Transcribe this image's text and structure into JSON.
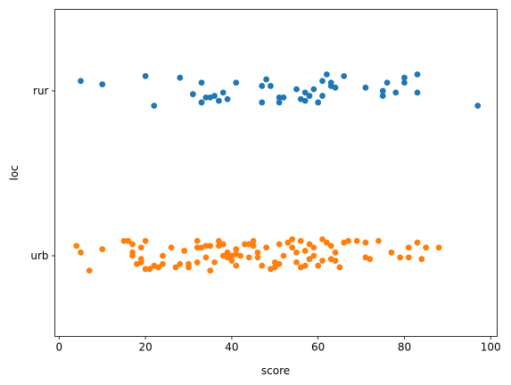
{
  "chart_data": {
    "type": "scatter",
    "subtype": "strip",
    "orientation": "horizontal",
    "xlabel": "score",
    "ylabel": "loc",
    "xlim": [
      -1,
      101.5
    ],
    "xticks": [
      0,
      20,
      40,
      60,
      80,
      100
    ],
    "categories": [
      "rur",
      "urb"
    ],
    "grid": false,
    "series": [
      {
        "name": "rur",
        "color": "#1f77b4",
        "points": [
          {
            "x": 5,
            "jitter": 0.06
          },
          {
            "x": 10,
            "jitter": 0.04
          },
          {
            "x": 20,
            "jitter": 0.09
          },
          {
            "x": 22,
            "jitter": -0.09
          },
          {
            "x": 28,
            "jitter": 0.08
          },
          {
            "x": 31,
            "jitter": -0.02
          },
          {
            "x": 33,
            "jitter": -0.07
          },
          {
            "x": 33,
            "jitter": 0.05
          },
          {
            "x": 34,
            "jitter": -0.04
          },
          {
            "x": 35,
            "jitter": -0.04
          },
          {
            "x": 36,
            "jitter": -0.03
          },
          {
            "x": 37,
            "jitter": -0.06
          },
          {
            "x": 38,
            "jitter": -0.01
          },
          {
            "x": 39,
            "jitter": -0.05
          },
          {
            "x": 41,
            "jitter": 0.05
          },
          {
            "x": 47,
            "jitter": 0.03
          },
          {
            "x": 47,
            "jitter": -0.07
          },
          {
            "x": 48,
            "jitter": 0.07
          },
          {
            "x": 49,
            "jitter": 0.03
          },
          {
            "x": 51,
            "jitter": -0.07
          },
          {
            "x": 51,
            "jitter": -0.04
          },
          {
            "x": 52,
            "jitter": -0.04
          },
          {
            "x": 55,
            "jitter": 0.01
          },
          {
            "x": 56,
            "jitter": -0.05
          },
          {
            "x": 57,
            "jitter": -0.06
          },
          {
            "x": 57,
            "jitter": -0.01
          },
          {
            "x": 58,
            "jitter": -0.03
          },
          {
            "x": 59,
            "jitter": 0.01
          },
          {
            "x": 60,
            "jitter": -0.07
          },
          {
            "x": 61,
            "jitter": -0.03
          },
          {
            "x": 61,
            "jitter": 0.06
          },
          {
            "x": 62,
            "jitter": 0.1
          },
          {
            "x": 63,
            "jitter": 0.03
          },
          {
            "x": 63,
            "jitter": 0.05
          },
          {
            "x": 64,
            "jitter": 0.02
          },
          {
            "x": 66,
            "jitter": 0.09
          },
          {
            "x": 71,
            "jitter": 0.02
          },
          {
            "x": 75,
            "jitter": -0.03
          },
          {
            "x": 75,
            "jitter": 0.0
          },
          {
            "x": 76,
            "jitter": 0.05
          },
          {
            "x": 78,
            "jitter": -0.01
          },
          {
            "x": 80,
            "jitter": 0.05
          },
          {
            "x": 80,
            "jitter": 0.08
          },
          {
            "x": 83,
            "jitter": 0.1
          },
          {
            "x": 83,
            "jitter": -0.01
          },
          {
            "x": 97,
            "jitter": -0.09
          }
        ]
      },
      {
        "name": "urb",
        "color": "#ff7f0e",
        "points": [
          {
            "x": 4,
            "jitter": 0.06
          },
          {
            "x": 5,
            "jitter": 0.02
          },
          {
            "x": 7,
            "jitter": -0.09
          },
          {
            "x": 10,
            "jitter": 0.04
          },
          {
            "x": 15,
            "jitter": 0.09
          },
          {
            "x": 16,
            "jitter": 0.09
          },
          {
            "x": 17,
            "jitter": 0.02
          },
          {
            "x": 17,
            "jitter": 0.0
          },
          {
            "x": 17,
            "jitter": 0.07
          },
          {
            "x": 18,
            "jitter": -0.05
          },
          {
            "x": 19,
            "jitter": -0.02
          },
          {
            "x": 19,
            "jitter": -0.04
          },
          {
            "x": 19,
            "jitter": 0.05
          },
          {
            "x": 20,
            "jitter": -0.08
          },
          {
            "x": 20,
            "jitter": 0.09
          },
          {
            "x": 21,
            "jitter": -0.08
          },
          {
            "x": 22,
            "jitter": -0.06
          },
          {
            "x": 23,
            "jitter": -0.07
          },
          {
            "x": 24,
            "jitter": -0.05
          },
          {
            "x": 24,
            "jitter": 0.0
          },
          {
            "x": 26,
            "jitter": 0.05
          },
          {
            "x": 27,
            "jitter": -0.07
          },
          {
            "x": 28,
            "jitter": -0.05
          },
          {
            "x": 29,
            "jitter": 0.03
          },
          {
            "x": 30,
            "jitter": -0.05
          },
          {
            "x": 30,
            "jitter": -0.07
          },
          {
            "x": 32,
            "jitter": 0.09
          },
          {
            "x": 32,
            "jitter": -0.04
          },
          {
            "x": 32,
            "jitter": 0.05
          },
          {
            "x": 33,
            "jitter": 0.05
          },
          {
            "x": 34,
            "jitter": 0.06
          },
          {
            "x": 34,
            "jitter": -0.01
          },
          {
            "x": 35,
            "jitter": -0.09
          },
          {
            "x": 35,
            "jitter": 0.06
          },
          {
            "x": 36,
            "jitter": -0.04
          },
          {
            "x": 37,
            "jitter": 0.06
          },
          {
            "x": 37,
            "jitter": 0.09
          },
          {
            "x": 38,
            "jitter": 0.0
          },
          {
            "x": 38,
            "jitter": 0.07
          },
          {
            "x": 39,
            "jitter": -0.01
          },
          {
            "x": 39,
            "jitter": 0.02
          },
          {
            "x": 40,
            "jitter": -0.03
          },
          {
            "x": 40,
            "jitter": 0.0
          },
          {
            "x": 41,
            "jitter": -0.06
          },
          {
            "x": 41,
            "jitter": 0.04
          },
          {
            "x": 41,
            "jitter": 0.01
          },
          {
            "x": 42,
            "jitter": 0.0
          },
          {
            "x": 43,
            "jitter": 0.07
          },
          {
            "x": 44,
            "jitter": 0.07
          },
          {
            "x": 44,
            "jitter": -0.01
          },
          {
            "x": 45,
            "jitter": 0.06
          },
          {
            "x": 45,
            "jitter": 0.09
          },
          {
            "x": 46,
            "jitter": 0.02
          },
          {
            "x": 46,
            "jitter": -0.01
          },
          {
            "x": 47,
            "jitter": -0.06
          },
          {
            "x": 48,
            "jitter": 0.05
          },
          {
            "x": 49,
            "jitter": -0.08
          },
          {
            "x": 50,
            "jitter": -0.07
          },
          {
            "x": 50,
            "jitter": -0.04
          },
          {
            "x": 51,
            "jitter": -0.05
          },
          {
            "x": 51,
            "jitter": 0.07
          },
          {
            "x": 52,
            "jitter": 0.0
          },
          {
            "x": 53,
            "jitter": 0.08
          },
          {
            "x": 54,
            "jitter": 0.1
          },
          {
            "x": 54,
            "jitter": 0.05
          },
          {
            "x": 55,
            "jitter": -0.04
          },
          {
            "x": 55,
            "jitter": 0.02
          },
          {
            "x": 56,
            "jitter": 0.09
          },
          {
            "x": 56,
            "jitter": -0.07
          },
          {
            "x": 57,
            "jitter": 0.03
          },
          {
            "x": 57,
            "jitter": -0.06
          },
          {
            "x": 58,
            "jitter": 0.07
          },
          {
            "x": 58,
            "jitter": -0.02
          },
          {
            "x": 59,
            "jitter": 0.0
          },
          {
            "x": 59,
            "jitter": 0.05
          },
          {
            "x": 60,
            "jitter": -0.06
          },
          {
            "x": 61,
            "jitter": 0.1
          },
          {
            "x": 61,
            "jitter": -0.03
          },
          {
            "x": 62,
            "jitter": 0.08
          },
          {
            "x": 63,
            "jitter": 0.06
          },
          {
            "x": 63,
            "jitter": -0.02
          },
          {
            "x": 64,
            "jitter": 0.02
          },
          {
            "x": 64,
            "jitter": -0.03
          },
          {
            "x": 65,
            "jitter": -0.07
          },
          {
            "x": 66,
            "jitter": 0.08
          },
          {
            "x": 67,
            "jitter": 0.09
          },
          {
            "x": 69,
            "jitter": 0.09
          },
          {
            "x": 71,
            "jitter": -0.01
          },
          {
            "x": 71,
            "jitter": 0.08
          },
          {
            "x": 72,
            "jitter": -0.02
          },
          {
            "x": 74,
            "jitter": 0.09
          },
          {
            "x": 77,
            "jitter": 0.02
          },
          {
            "x": 79,
            "jitter": -0.01
          },
          {
            "x": 81,
            "jitter": -0.01
          },
          {
            "x": 81,
            "jitter": 0.05
          },
          {
            "x": 83,
            "jitter": 0.08
          },
          {
            "x": 84,
            "jitter": -0.02
          },
          {
            "x": 85,
            "jitter": 0.05
          },
          {
            "x": 88,
            "jitter": 0.05
          }
        ]
      }
    ]
  }
}
